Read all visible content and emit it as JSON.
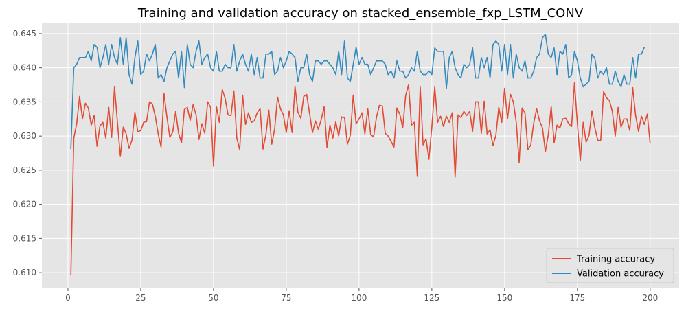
{
  "chart_data": {
    "type": "line",
    "title": "Training and validation accuracy on stacked_ensemble_fxp_LSTM_CONV",
    "xlabel": "",
    "ylabel": "",
    "xlim": [
      -8.95,
      209.95
    ],
    "ylim": [
      0.6077,
      0.6465
    ],
    "xticks": [
      0,
      25,
      50,
      75,
      100,
      125,
      150,
      175,
      200
    ],
    "yticks": [
      0.61,
      0.615,
      0.62,
      0.625,
      0.63,
      0.635,
      0.64,
      0.645
    ],
    "ytick_labels": [
      "0.610",
      "0.615",
      "0.620",
      "0.625",
      "0.630",
      "0.635",
      "0.640",
      "0.645"
    ],
    "grid": true,
    "legend": {
      "placement": "lower-right"
    },
    "background": "#e5e5e5",
    "series": [
      {
        "name": "Training accuracy",
        "color": "#e24a33",
        "x_start": 1,
        "x_step": 1,
        "values": [
          0.6096,
          0.6297,
          0.6318,
          0.6358,
          0.6325,
          0.6348,
          0.6341,
          0.6316,
          0.633,
          0.6285,
          0.6315,
          0.632,
          0.6297,
          0.6342,
          0.6298,
          0.6372,
          0.632,
          0.627,
          0.6313,
          0.6303,
          0.6282,
          0.6294,
          0.6335,
          0.6306,
          0.6308,
          0.632,
          0.6321,
          0.635,
          0.6347,
          0.6329,
          0.6303,
          0.6284,
          0.6362,
          0.6328,
          0.6298,
          0.6306,
          0.6336,
          0.6304,
          0.629,
          0.6339,
          0.6342,
          0.6323,
          0.6346,
          0.6331,
          0.6295,
          0.6318,
          0.6304,
          0.635,
          0.6342,
          0.6256,
          0.6343,
          0.632,
          0.6368,
          0.6355,
          0.6331,
          0.633,
          0.6366,
          0.6297,
          0.628,
          0.636,
          0.6317,
          0.6334,
          0.632,
          0.6322,
          0.6334,
          0.634,
          0.6281,
          0.6302,
          0.6338,
          0.6288,
          0.631,
          0.6357,
          0.634,
          0.6331,
          0.6305,
          0.6337,
          0.6305,
          0.6373,
          0.6335,
          0.6326,
          0.6358,
          0.6361,
          0.6333,
          0.6305,
          0.6322,
          0.631,
          0.6324,
          0.6343,
          0.6283,
          0.6316,
          0.6297,
          0.6321,
          0.63,
          0.6328,
          0.6327,
          0.6288,
          0.6301,
          0.636,
          0.6318,
          0.6325,
          0.6334,
          0.6303,
          0.634,
          0.6302,
          0.6299,
          0.6328,
          0.6345,
          0.6344,
          0.6304,
          0.63,
          0.6292,
          0.6284,
          0.6341,
          0.6332,
          0.6312,
          0.6359,
          0.6375,
          0.6316,
          0.632,
          0.6241,
          0.6372,
          0.6287,
          0.6296,
          0.6266,
          0.6313,
          0.6372,
          0.632,
          0.6329,
          0.6314,
          0.6329,
          0.632,
          0.6334,
          0.624,
          0.6331,
          0.6327,
          0.6336,
          0.633,
          0.6336,
          0.6307,
          0.635,
          0.635,
          0.6304,
          0.6351,
          0.6303,
          0.6309,
          0.6286,
          0.6301,
          0.6342,
          0.632,
          0.637,
          0.6325,
          0.6361,
          0.635,
          0.632,
          0.6261,
          0.6341,
          0.6334,
          0.628,
          0.6287,
          0.6319,
          0.634,
          0.6322,
          0.6312,
          0.6277,
          0.6302,
          0.6343,
          0.629,
          0.6316,
          0.6312,
          0.6325,
          0.6326,
          0.6318,
          0.6314,
          0.6378,
          0.6318,
          0.6264,
          0.632,
          0.6291,
          0.6301,
          0.6337,
          0.6312,
          0.6294,
          0.6293,
          0.6365,
          0.6356,
          0.6352,
          0.6336,
          0.63,
          0.6342,
          0.6313,
          0.6325,
          0.6325,
          0.6308,
          0.6371,
          0.633,
          0.6307,
          0.6329,
          0.6317,
          0.6332,
          0.6289
        ]
      },
      {
        "name": "Validation accuracy",
        "color": "#348abd",
        "x_start": 1,
        "x_step": 1,
        "values": [
          0.6281,
          0.64,
          0.6405,
          0.6415,
          0.6415,
          0.6415,
          0.6424,
          0.641,
          0.6434,
          0.643,
          0.64,
          0.6415,
          0.6434,
          0.6405,
          0.6434,
          0.6415,
          0.6405,
          0.6444,
          0.6405,
          0.6444,
          0.639,
          0.6376,
          0.6415,
          0.6439,
          0.639,
          0.6395,
          0.642,
          0.641,
          0.642,
          0.6434,
          0.6385,
          0.639,
          0.638,
          0.64,
          0.641,
          0.642,
          0.6424,
          0.6385,
          0.6424,
          0.6371,
          0.6434,
          0.6405,
          0.64,
          0.6424,
          0.6439,
          0.6405,
          0.6415,
          0.642,
          0.64,
          0.6395,
          0.6424,
          0.6395,
          0.6395,
          0.6405,
          0.64,
          0.64,
          0.6434,
          0.6395,
          0.641,
          0.642,
          0.6405,
          0.6395,
          0.642,
          0.639,
          0.6415,
          0.6385,
          0.6385,
          0.642,
          0.642,
          0.6424,
          0.639,
          0.6395,
          0.6415,
          0.64,
          0.641,
          0.6424,
          0.642,
          0.6415,
          0.638,
          0.64,
          0.64,
          0.642,
          0.639,
          0.638,
          0.641,
          0.641,
          0.6405,
          0.641,
          0.641,
          0.6405,
          0.64,
          0.639,
          0.6424,
          0.639,
          0.6439,
          0.6385,
          0.638,
          0.6405,
          0.643,
          0.6405,
          0.6415,
          0.6405,
          0.6405,
          0.639,
          0.64,
          0.641,
          0.641,
          0.641,
          0.6405,
          0.639,
          0.6395,
          0.6385,
          0.641,
          0.6395,
          0.6395,
          0.6385,
          0.639,
          0.64,
          0.6395,
          0.6424,
          0.6395,
          0.639,
          0.639,
          0.6395,
          0.639,
          0.6429,
          0.6424,
          0.6424,
          0.6424,
          0.637,
          0.6415,
          0.6424,
          0.64,
          0.639,
          0.6385,
          0.6405,
          0.64,
          0.6405,
          0.6429,
          0.6385,
          0.6385,
          0.6415,
          0.64,
          0.6415,
          0.6385,
          0.6434,
          0.6439,
          0.6434,
          0.6395,
          0.6434,
          0.639,
          0.6434,
          0.6385,
          0.642,
          0.64,
          0.6395,
          0.641,
          0.6385,
          0.6385,
          0.6395,
          0.6415,
          0.642,
          0.6444,
          0.6449,
          0.642,
          0.6415,
          0.6429,
          0.639,
          0.6424,
          0.642,
          0.6434,
          0.6385,
          0.639,
          0.6424,
          0.641,
          0.6385,
          0.6372,
          0.6376,
          0.638,
          0.642,
          0.6414,
          0.6385,
          0.6395,
          0.639,
          0.64,
          0.6376,
          0.6376,
          0.6395,
          0.638,
          0.6372,
          0.639,
          0.6376,
          0.6376,
          0.6415,
          0.6385,
          0.642,
          0.642,
          0.643
        ]
      }
    ]
  }
}
